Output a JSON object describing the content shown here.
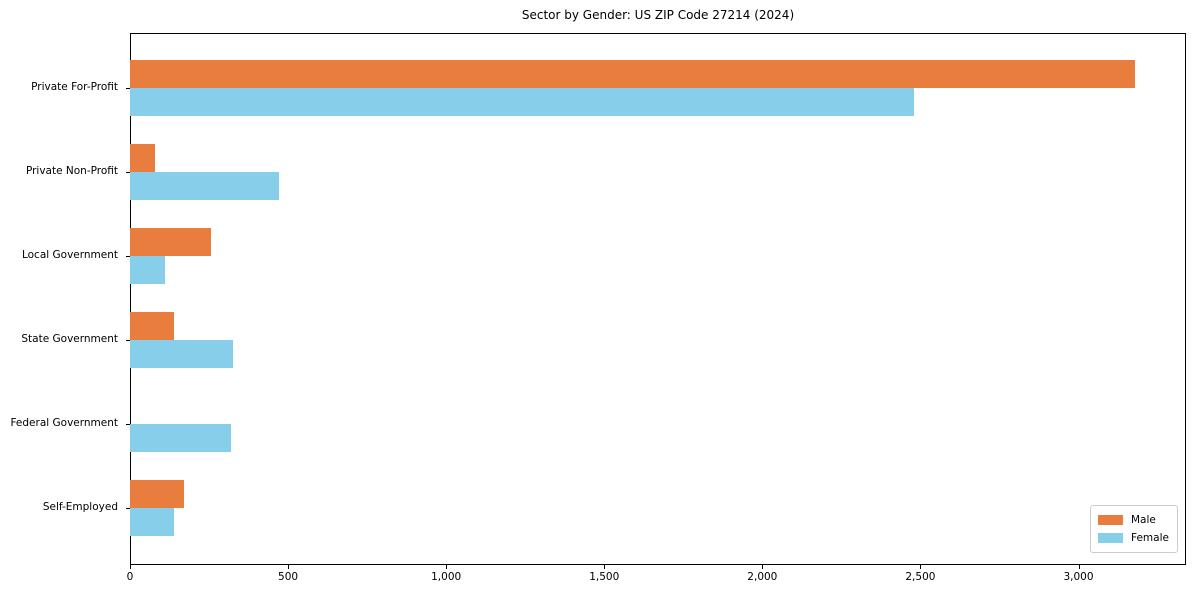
{
  "chart_data": {
    "type": "bar",
    "orientation": "horizontal",
    "title": "Sector by Gender: US ZIP Code 27214 (2024)",
    "categories": [
      "Private For-Profit",
      "Private Non-Profit",
      "Local Government",
      "State Government",
      "Federal Government",
      "Self-Employed"
    ],
    "series": [
      {
        "name": "Male",
        "color": "#e87d3d",
        "values": [
          3180,
          80,
          255,
          140,
          0,
          170
        ]
      },
      {
        "name": "Female",
        "color": "#87ceeb",
        "values": [
          2480,
          470,
          110,
          325,
          320,
          140
        ]
      }
    ],
    "xlabel": "",
    "ylabel": "",
    "xlim": [
      0,
      3340
    ],
    "x_ticks": [
      0,
      500,
      1000,
      1500,
      2000,
      2500,
      3000
    ],
    "x_tick_labels": [
      "0",
      "500",
      "1,000",
      "1,500",
      "2,000",
      "2,500",
      "3,000"
    ],
    "grid": false,
    "legend_position": "lower right"
  }
}
